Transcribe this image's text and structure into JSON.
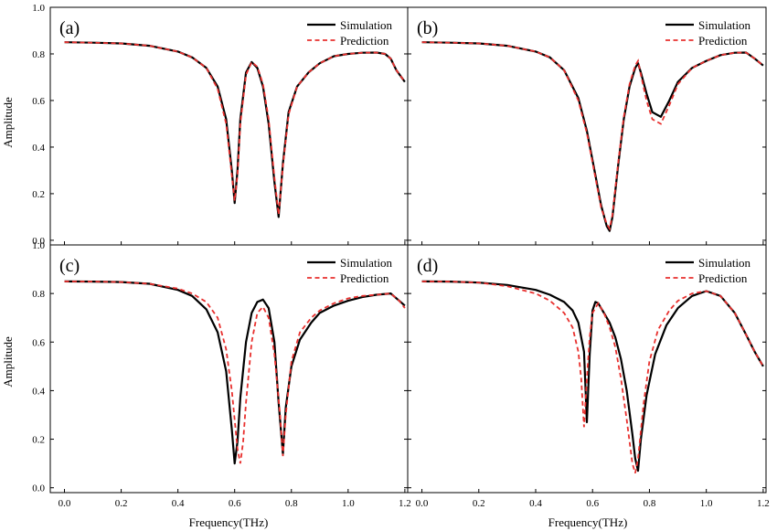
{
  "chart_data": {
    "type": "line",
    "xlabel": "Frequency(THz)",
    "ylabel": "Amplitude",
    "xlim": [
      -0.05,
      1.21
    ],
    "ylim": [
      -0.02,
      1.0
    ],
    "x_ticks": [
      "0.0",
      "0.2",
      "0.4",
      "0.6",
      "0.8",
      "1.0",
      "1.2"
    ],
    "y_ticks": [
      "0.0",
      "0.2",
      "0.4",
      "0.6",
      "0.8",
      "1.0"
    ],
    "colors": {
      "Simulation": "#000000",
      "Prediction": "#e8302e"
    },
    "legend_position": "top-right",
    "panels": [
      {
        "label": "(a)",
        "series": [
          {
            "name": "Simulation",
            "x": [
              0,
              0.1,
              0.2,
              0.3,
              0.4,
              0.45,
              0.5,
              0.54,
              0.57,
              0.59,
              0.6,
              0.61,
              0.62,
              0.64,
              0.66,
              0.68,
              0.7,
              0.72,
              0.74,
              0.755,
              0.77,
              0.79,
              0.82,
              0.86,
              0.9,
              0.95,
              1.0,
              1.05,
              1.1,
              1.13,
              1.15,
              1.17,
              1.2
            ],
            "y": [
              0.85,
              0.848,
              0.845,
              0.835,
              0.81,
              0.785,
              0.74,
              0.66,
              0.52,
              0.3,
              0.16,
              0.3,
              0.52,
              0.72,
              0.765,
              0.74,
              0.66,
              0.5,
              0.25,
              0.1,
              0.33,
              0.55,
              0.66,
              0.72,
              0.76,
              0.79,
              0.8,
              0.805,
              0.806,
              0.8,
              0.78,
              0.73,
              0.68
            ]
          },
          {
            "name": "Prediction",
            "x": [
              0,
              0.1,
              0.2,
              0.3,
              0.4,
              0.45,
              0.5,
              0.54,
              0.57,
              0.59,
              0.6,
              0.61,
              0.62,
              0.64,
              0.66,
              0.68,
              0.7,
              0.72,
              0.74,
              0.755,
              0.77,
              0.79,
              0.82,
              0.86,
              0.9,
              0.95,
              1.0,
              1.05,
              1.1,
              1.13,
              1.15,
              1.17,
              1.2
            ],
            "y": [
              0.85,
              0.848,
              0.845,
              0.835,
              0.81,
              0.785,
              0.74,
              0.65,
              0.5,
              0.28,
              0.17,
              0.28,
              0.5,
              0.71,
              0.765,
              0.745,
              0.67,
              0.52,
              0.27,
              0.11,
              0.32,
              0.54,
              0.66,
              0.72,
              0.76,
              0.79,
              0.8,
              0.805,
              0.806,
              0.8,
              0.78,
              0.73,
              0.68
            ]
          }
        ]
      },
      {
        "label": "(b)",
        "series": [
          {
            "name": "Simulation",
            "x": [
              0,
              0.1,
              0.2,
              0.3,
              0.4,
              0.45,
              0.5,
              0.55,
              0.58,
              0.61,
              0.63,
              0.65,
              0.66,
              0.67,
              0.69,
              0.71,
              0.73,
              0.75,
              0.76,
              0.77,
              0.79,
              0.81,
              0.84,
              0.87,
              0.9,
              0.95,
              1.0,
              1.05,
              1.1,
              1.14,
              1.17,
              1.2
            ],
            "y": [
              0.85,
              0.848,
              0.845,
              0.835,
              0.81,
              0.785,
              0.73,
              0.61,
              0.47,
              0.28,
              0.15,
              0.06,
              0.04,
              0.1,
              0.32,
              0.52,
              0.66,
              0.74,
              0.76,
              0.72,
              0.63,
              0.55,
              0.53,
              0.6,
              0.68,
              0.74,
              0.77,
              0.795,
              0.805,
              0.806,
              0.78,
              0.75
            ]
          },
          {
            "name": "Prediction",
            "x": [
              0,
              0.1,
              0.2,
              0.3,
              0.4,
              0.45,
              0.5,
              0.55,
              0.58,
              0.61,
              0.63,
              0.65,
              0.66,
              0.67,
              0.69,
              0.71,
              0.73,
              0.75,
              0.76,
              0.77,
              0.79,
              0.81,
              0.84,
              0.87,
              0.9,
              0.95,
              1.0,
              1.05,
              1.1,
              1.14,
              1.17,
              1.2
            ],
            "y": [
              0.85,
              0.848,
              0.845,
              0.835,
              0.81,
              0.785,
              0.73,
              0.6,
              0.46,
              0.27,
              0.14,
              0.07,
              0.05,
              0.11,
              0.33,
              0.53,
              0.67,
              0.75,
              0.77,
              0.71,
              0.6,
              0.52,
              0.5,
              0.58,
              0.67,
              0.74,
              0.77,
              0.795,
              0.805,
              0.806,
              0.78,
              0.75
            ]
          }
        ]
      },
      {
        "label": "(c)",
        "series": [
          {
            "name": "Simulation",
            "x": [
              0,
              0.1,
              0.2,
              0.3,
              0.4,
              0.45,
              0.5,
              0.54,
              0.57,
              0.59,
              0.6,
              0.61,
              0.62,
              0.64,
              0.66,
              0.68,
              0.7,
              0.72,
              0.74,
              0.755,
              0.77,
              0.78,
              0.8,
              0.83,
              0.87,
              0.9,
              0.95,
              1.0,
              1.05,
              1.1,
              1.15,
              1.18,
              1.2
            ],
            "y": [
              0.85,
              0.849,
              0.847,
              0.84,
              0.815,
              0.79,
              0.735,
              0.64,
              0.48,
              0.24,
              0.1,
              0.19,
              0.37,
              0.6,
              0.72,
              0.765,
              0.775,
              0.74,
              0.6,
              0.35,
              0.14,
              0.33,
              0.5,
              0.61,
              0.68,
              0.72,
              0.75,
              0.77,
              0.785,
              0.795,
              0.8,
              0.77,
              0.75
            ]
          },
          {
            "name": "Prediction",
            "x": [
              0,
              0.1,
              0.2,
              0.3,
              0.4,
              0.45,
              0.5,
              0.54,
              0.57,
              0.59,
              0.61,
              0.62,
              0.63,
              0.64,
              0.66,
              0.68,
              0.7,
              0.72,
              0.74,
              0.76,
              0.77,
              0.78,
              0.8,
              0.83,
              0.87,
              0.9,
              0.95,
              1.0,
              1.05,
              1.1,
              1.15,
              1.18,
              1.2
            ],
            "y": [
              0.85,
              0.849,
              0.847,
              0.84,
              0.82,
              0.8,
              0.765,
              0.7,
              0.57,
              0.4,
              0.16,
              0.1,
              0.19,
              0.35,
              0.6,
              0.72,
              0.745,
              0.7,
              0.55,
              0.3,
              0.13,
              0.3,
              0.52,
              0.64,
              0.7,
              0.73,
              0.76,
              0.78,
              0.79,
              0.795,
              0.8,
              0.77,
              0.74
            ]
          }
        ]
      },
      {
        "label": "(d)",
        "series": [
          {
            "name": "Simulation",
            "x": [
              0,
              0.1,
              0.2,
              0.3,
              0.4,
              0.45,
              0.5,
              0.53,
              0.55,
              0.57,
              0.58,
              0.59,
              0.6,
              0.61,
              0.62,
              0.64,
              0.66,
              0.68,
              0.7,
              0.72,
              0.74,
              0.75,
              0.76,
              0.77,
              0.79,
              0.82,
              0.86,
              0.9,
              0.95,
              1.0,
              1.05,
              1.1,
              1.14,
              1.17,
              1.2
            ],
            "y": [
              0.85,
              0.849,
              0.845,
              0.835,
              0.815,
              0.795,
              0.765,
              0.73,
              0.68,
              0.56,
              0.27,
              0.55,
              0.73,
              0.765,
              0.76,
              0.72,
              0.68,
              0.62,
              0.53,
              0.4,
              0.22,
              0.12,
              0.07,
              0.2,
              0.38,
              0.55,
              0.67,
              0.74,
              0.79,
              0.81,
              0.79,
              0.72,
              0.63,
              0.56,
              0.5
            ]
          },
          {
            "name": "Prediction",
            "x": [
              0,
              0.1,
              0.2,
              0.3,
              0.4,
              0.45,
              0.5,
              0.53,
              0.55,
              0.56,
              0.57,
              0.58,
              0.59,
              0.6,
              0.62,
              0.64,
              0.66,
              0.68,
              0.7,
              0.72,
              0.74,
              0.75,
              0.76,
              0.78,
              0.8,
              0.83,
              0.87,
              0.9,
              0.95,
              1.0,
              1.05,
              1.1,
              1.14,
              1.17,
              1.2
            ],
            "y": [
              0.85,
              0.849,
              0.845,
              0.83,
              0.8,
              0.77,
              0.72,
              0.66,
              0.56,
              0.45,
              0.25,
              0.45,
              0.62,
              0.72,
              0.76,
              0.72,
              0.66,
              0.58,
              0.45,
              0.28,
              0.1,
              0.06,
              0.12,
              0.35,
              0.52,
              0.65,
              0.73,
              0.77,
              0.8,
              0.81,
              0.79,
              0.72,
              0.63,
              0.56,
              0.5
            ]
          }
        ]
      }
    ]
  }
}
